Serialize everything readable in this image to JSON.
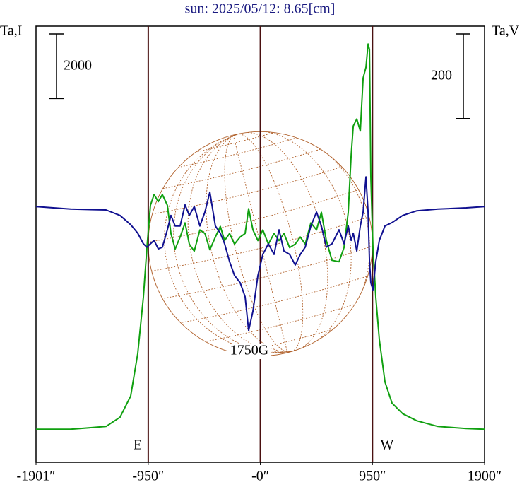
{
  "chart_data": {
    "type": "line",
    "title": "sun: 2025/05/12: 8.65[cm]",
    "ylabel": "Ta,I",
    "y2label": "Ta,V",
    "xlim": [
      -1901,
      1900
    ],
    "xticks": [
      {
        "value": -1901,
        "label": "-1901″"
      },
      {
        "value": -950,
        "label": "-950″"
      },
      {
        "value": 0,
        "label": "-0″"
      },
      {
        "value": 950,
        "label": "950″"
      },
      {
        "value": 1900,
        "label": "1900″"
      }
    ],
    "ylim": [
      -1000,
      12500
    ],
    "y2lim": [
      -600,
      430
    ],
    "y_scale_bar": 2000,
    "y2_scale_bar": 200,
    "vertical_lines": [
      -950,
      0,
      950
    ],
    "east_label": "E",
    "west_label": "W",
    "annotation": "1750G",
    "x": [
      -1901,
      -1608,
      -1308,
      -1189,
      -1099,
      -1039,
      -991,
      -961,
      -931,
      -901,
      -865,
      -830,
      -788,
      -758,
      -722,
      -680,
      -638,
      -602,
      -560,
      -512,
      -470,
      -428,
      -381,
      -339,
      -303,
      -261,
      -219,
      -171,
      -129,
      -99,
      -63,
      -21,
      21,
      68,
      116,
      158,
      200,
      248,
      296,
      338,
      380,
      428,
      476,
      517,
      559,
      607,
      667,
      709,
      745,
      769,
      787,
      817,
      847,
      871,
      895,
      913,
      925,
      936,
      954,
      978,
      1008,
      1056,
      1116,
      1206,
      1326,
      1505,
      1745,
      1900
    ],
    "series": [
      {
        "name": "I",
        "color": "#10a010",
        "axis": "y",
        "values": [
          22,
          22,
          109,
          394,
          1050,
          2363,
          4113,
          5645,
          6958,
          7286,
          7067,
          7286,
          6958,
          6083,
          5601,
          5973,
          6411,
          5754,
          5536,
          6192,
          6083,
          5579,
          5973,
          6301,
          5864,
          6083,
          5754,
          5973,
          6083,
          6848,
          6192,
          5864,
          6192,
          5754,
          6083,
          5864,
          6083,
          5645,
          5754,
          5973,
          5754,
          6411,
          6192,
          6739,
          5864,
          5251,
          5207,
          5645,
          6739,
          8489,
          9408,
          9627,
          9255,
          10896,
          11224,
          11946,
          11771,
          7833,
          5645,
          4113,
          2801,
          1488,
          831,
          503,
          284,
          109,
          44,
          22
        ]
      },
      {
        "name": "V",
        "color": "#101090",
        "axis": "y2",
        "values": [
          4,
          -2,
          -4,
          -17,
          -39,
          -59,
          -84,
          -92,
          -84,
          -76,
          -96,
          -92,
          -51,
          -17,
          -42,
          -42,
          8,
          -17,
          4,
          -42,
          -9,
          38,
          -42,
          -59,
          -84,
          -126,
          -159,
          -176,
          -209,
          -289,
          -243,
          -159,
          -109,
          -84,
          -109,
          -51,
          -101,
          -109,
          -134,
          -109,
          -92,
          -42,
          -9,
          -42,
          -92,
          -84,
          -51,
          -84,
          -42,
          -76,
          -59,
          -101,
          -42,
          -9,
          74,
          -9,
          -126,
          -176,
          -193,
          -126,
          -76,
          -42,
          -34,
          -17,
          -6,
          -2,
          1,
          4
        ]
      }
    ],
    "grid": false
  }
}
